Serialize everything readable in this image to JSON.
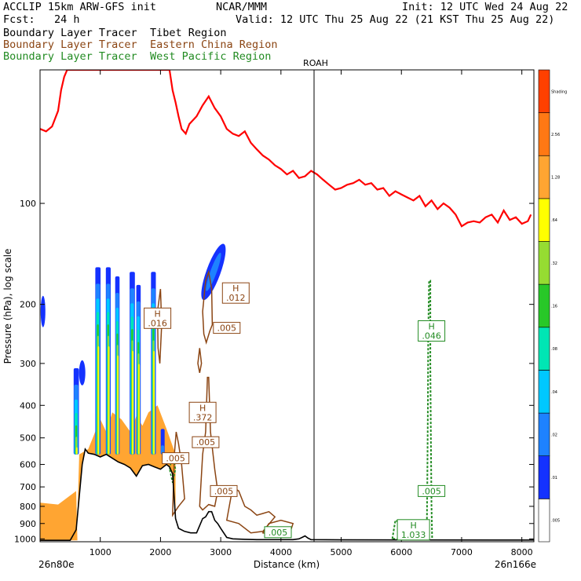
{
  "header": {
    "left_line1": "ACCLIP 15km ARW-GFS init",
    "center_line1": "NCAR/MMM",
    "right_line1": "Init: 12 UTC Wed 24 Aug 22",
    "left_line2": "Fcst:   24 h",
    "right_line2": "Valid: 12 UTC Thu 25 Aug 22 (21 KST Thu 25 Aug 22)",
    "legend_rows": [
      {
        "tracer": "Boundary Layer Tracer",
        "region": "Tibet Region",
        "color": "#000000"
      },
      {
        "tracer": "Boundary Layer Tracer",
        "region": "Eastern China Region",
        "color": "#8b4513"
      },
      {
        "tracer": "Boundary Layer Tracer",
        "region": "West Pacific Region",
        "color": "#228b22"
      }
    ]
  },
  "chart_data": {
    "type": "contour cross-section",
    "xlabel": "Distance (km)",
    "ylabel": "Pressure (hPa), log scale",
    "x_ticks": [
      1000,
      2000,
      3000,
      4000,
      5000,
      6000,
      7000,
      8000
    ],
    "xlim": [
      0,
      8200
    ],
    "y_ticks": [
      100,
      200,
      300,
      400,
      500,
      600,
      700,
      800,
      900,
      1000
    ],
    "ylim": [
      1020,
      40
    ],
    "yscale": "log",
    "x_endpoints": {
      "left": "26n80e",
      "right": "26n166e"
    },
    "marker_line": {
      "label": "ROAH",
      "x": 4550
    },
    "colorbar": {
      "levels": [
        ".005",
        ".01",
        ".02",
        ".04",
        ".08",
        ".16",
        ".32",
        ".64",
        "1.28",
        "2.56",
        "Shading"
      ],
      "colors": [
        "#ffffff",
        "#1432ff",
        "#1e82ff",
        "#00c8ff",
        "#00e6b4",
        "#28c828",
        "#96dc32",
        "#ffff00",
        "#ffa532",
        "#ff7814",
        "#ff4000"
      ]
    },
    "boundary_line": {
      "color": "#ff0000",
      "points": [
        [
          0,
          60
        ],
        [
          100,
          61
        ],
        [
          200,
          59
        ],
        [
          300,
          53
        ],
        [
          350,
          46
        ],
        [
          400,
          42
        ],
        [
          450,
          40
        ],
        [
          2150,
          40
        ],
        [
          2200,
          46
        ],
        [
          2250,
          50
        ],
        [
          2300,
          55
        ],
        [
          2350,
          60
        ],
        [
          2420,
          62
        ],
        [
          2480,
          58
        ],
        [
          2600,
          55
        ],
        [
          2700,
          51
        ],
        [
          2800,
          48
        ],
        [
          2900,
          52
        ],
        [
          3000,
          55
        ],
        [
          3100,
          60
        ],
        [
          3200,
          62
        ],
        [
          3300,
          63
        ],
        [
          3400,
          61
        ],
        [
          3500,
          66
        ],
        [
          3600,
          69
        ],
        [
          3700,
          72
        ],
        [
          3800,
          74
        ],
        [
          3900,
          77
        ],
        [
          4000,
          79
        ],
        [
          4100,
          82
        ],
        [
          4200,
          80
        ],
        [
          4300,
          84
        ],
        [
          4400,
          83
        ],
        [
          4500,
          80
        ],
        [
          4600,
          82
        ],
        [
          4700,
          85
        ],
        [
          4800,
          88
        ],
        [
          4900,
          91
        ],
        [
          5000,
          90
        ],
        [
          5100,
          88
        ],
        [
          5200,
          87
        ],
        [
          5300,
          85
        ],
        [
          5400,
          88
        ],
        [
          5500,
          87
        ],
        [
          5600,
          91
        ],
        [
          5700,
          90
        ],
        [
          5800,
          95
        ],
        [
          5900,
          92
        ],
        [
          6000,
          94
        ],
        [
          6100,
          96
        ],
        [
          6200,
          98
        ],
        [
          6300,
          95
        ],
        [
          6400,
          102
        ],
        [
          6500,
          98
        ],
        [
          6600,
          104
        ],
        [
          6700,
          100
        ],
        [
          6800,
          103
        ],
        [
          6900,
          108
        ],
        [
          7000,
          117
        ],
        [
          7100,
          114
        ],
        [
          7200,
          113
        ],
        [
          7300,
          114
        ],
        [
          7400,
          110
        ],
        [
          7500,
          108
        ],
        [
          7600,
          114
        ],
        [
          7700,
          105
        ],
        [
          7800,
          112
        ],
        [
          7900,
          110
        ],
        [
          8000,
          115
        ],
        [
          8100,
          113
        ],
        [
          8150,
          108
        ]
      ]
    },
    "terrain_line": {
      "color": "#000000",
      "points": [
        [
          0,
          1010
        ],
        [
          500,
          1010
        ],
        [
          600,
          940
        ],
        [
          700,
          600
        ],
        [
          750,
          540
        ],
        [
          800,
          555
        ],
        [
          900,
          560
        ],
        [
          1000,
          570
        ],
        [
          1100,
          560
        ],
        [
          1200,
          575
        ],
        [
          1300,
          590
        ],
        [
          1400,
          600
        ],
        [
          1500,
          615
        ],
        [
          1600,
          650
        ],
        [
          1700,
          605
        ],
        [
          1800,
          600
        ],
        [
          1900,
          610
        ],
        [
          2000,
          620
        ],
        [
          2100,
          600
        ],
        [
          2150,
          610
        ],
        [
          2200,
          640
        ],
        [
          2250,
          870
        ],
        [
          2300,
          930
        ],
        [
          2400,
          950
        ],
        [
          2500,
          960
        ],
        [
          2600,
          960
        ],
        [
          2700,
          870
        ],
        [
          2750,
          860
        ],
        [
          2800,
          830
        ],
        [
          2850,
          830
        ],
        [
          2900,
          880
        ],
        [
          2950,
          900
        ],
        [
          3000,
          930
        ],
        [
          3100,
          990
        ],
        [
          3200,
          1000
        ],
        [
          3400,
          1003
        ],
        [
          3600,
          1005
        ],
        [
          4000,
          1005
        ],
        [
          4200,
          1005
        ],
        [
          4300,
          1000
        ],
        [
          4350,
          990
        ],
        [
          4400,
          980
        ],
        [
          4450,
          995
        ],
        [
          4500,
          1005
        ],
        [
          5000,
          1007
        ],
        [
          8200,
          1008
        ]
      ]
    },
    "contour_labels": [
      {
        "text": "H",
        "value": ".016",
        "x": 1950,
        "p": 220,
        "series": "Eastern China Region"
      },
      {
        "text": "H",
        "value": ".012",
        "x": 3250,
        "p": 185,
        "series": "Eastern China Region"
      },
      {
        "text": ".005",
        "x": 3100,
        "p": 235,
        "series": "Eastern China Region"
      },
      {
        "text": "H",
        "value": ".372",
        "x": 2700,
        "p": 420,
        "series": "Eastern China Region"
      },
      {
        "text": ".005",
        "x": 2750,
        "p": 515,
        "series": "Eastern China Region"
      },
      {
        "text": ".005",
        "x": 2250,
        "p": 575,
        "series": "Eastern China Region"
      },
      {
        "text": ".005",
        "x": 3050,
        "p": 720,
        "series": "Eastern China Region"
      },
      {
        "text": ".005",
        "x": 3950,
        "p": 955,
        "series": "West Pacific Region"
      },
      {
        "text": "H",
        "value": ".046",
        "x": 6500,
        "p": 240,
        "series": "West Pacific Region"
      },
      {
        "text": ".005",
        "x": 6500,
        "p": 720,
        "series": "West Pacific Region"
      },
      {
        "text": "H",
        "value": "1.033",
        "x": 6200,
        "p": 940,
        "series": "West Pacific Region"
      }
    ]
  }
}
